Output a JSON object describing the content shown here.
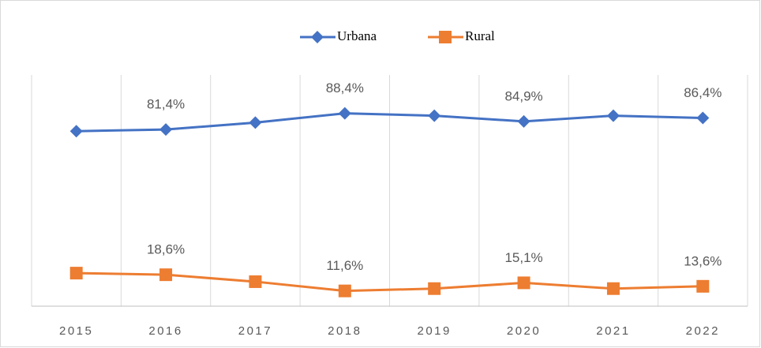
{
  "chart_data": {
    "type": "line",
    "categories": [
      "2015",
      "2016",
      "2017",
      "2018",
      "2019",
      "2020",
      "2021",
      "2022"
    ],
    "series": [
      {
        "name": "Urbana",
        "color": "#4472c4",
        "marker": "diamond",
        "values": [
          80.7,
          81.4,
          84.4,
          88.4,
          87.4,
          84.9,
          87.4,
          86.4
        ],
        "value_labels": [
          null,
          "81,4%",
          null,
          "88,4%",
          null,
          "84,9%",
          null,
          "86,4%"
        ]
      },
      {
        "name": "Rural",
        "color": "#ed7d31",
        "marker": "square",
        "values": [
          19.3,
          18.6,
          15.6,
          11.6,
          12.6,
          15.1,
          12.6,
          13.6
        ],
        "value_labels": [
          null,
          "18,6%",
          null,
          "11,6%",
          null,
          "15,1%",
          null,
          "13,6%"
        ]
      }
    ],
    "ylim": [
      5,
      105
    ],
    "legend": "top",
    "grid": "vertical"
  }
}
